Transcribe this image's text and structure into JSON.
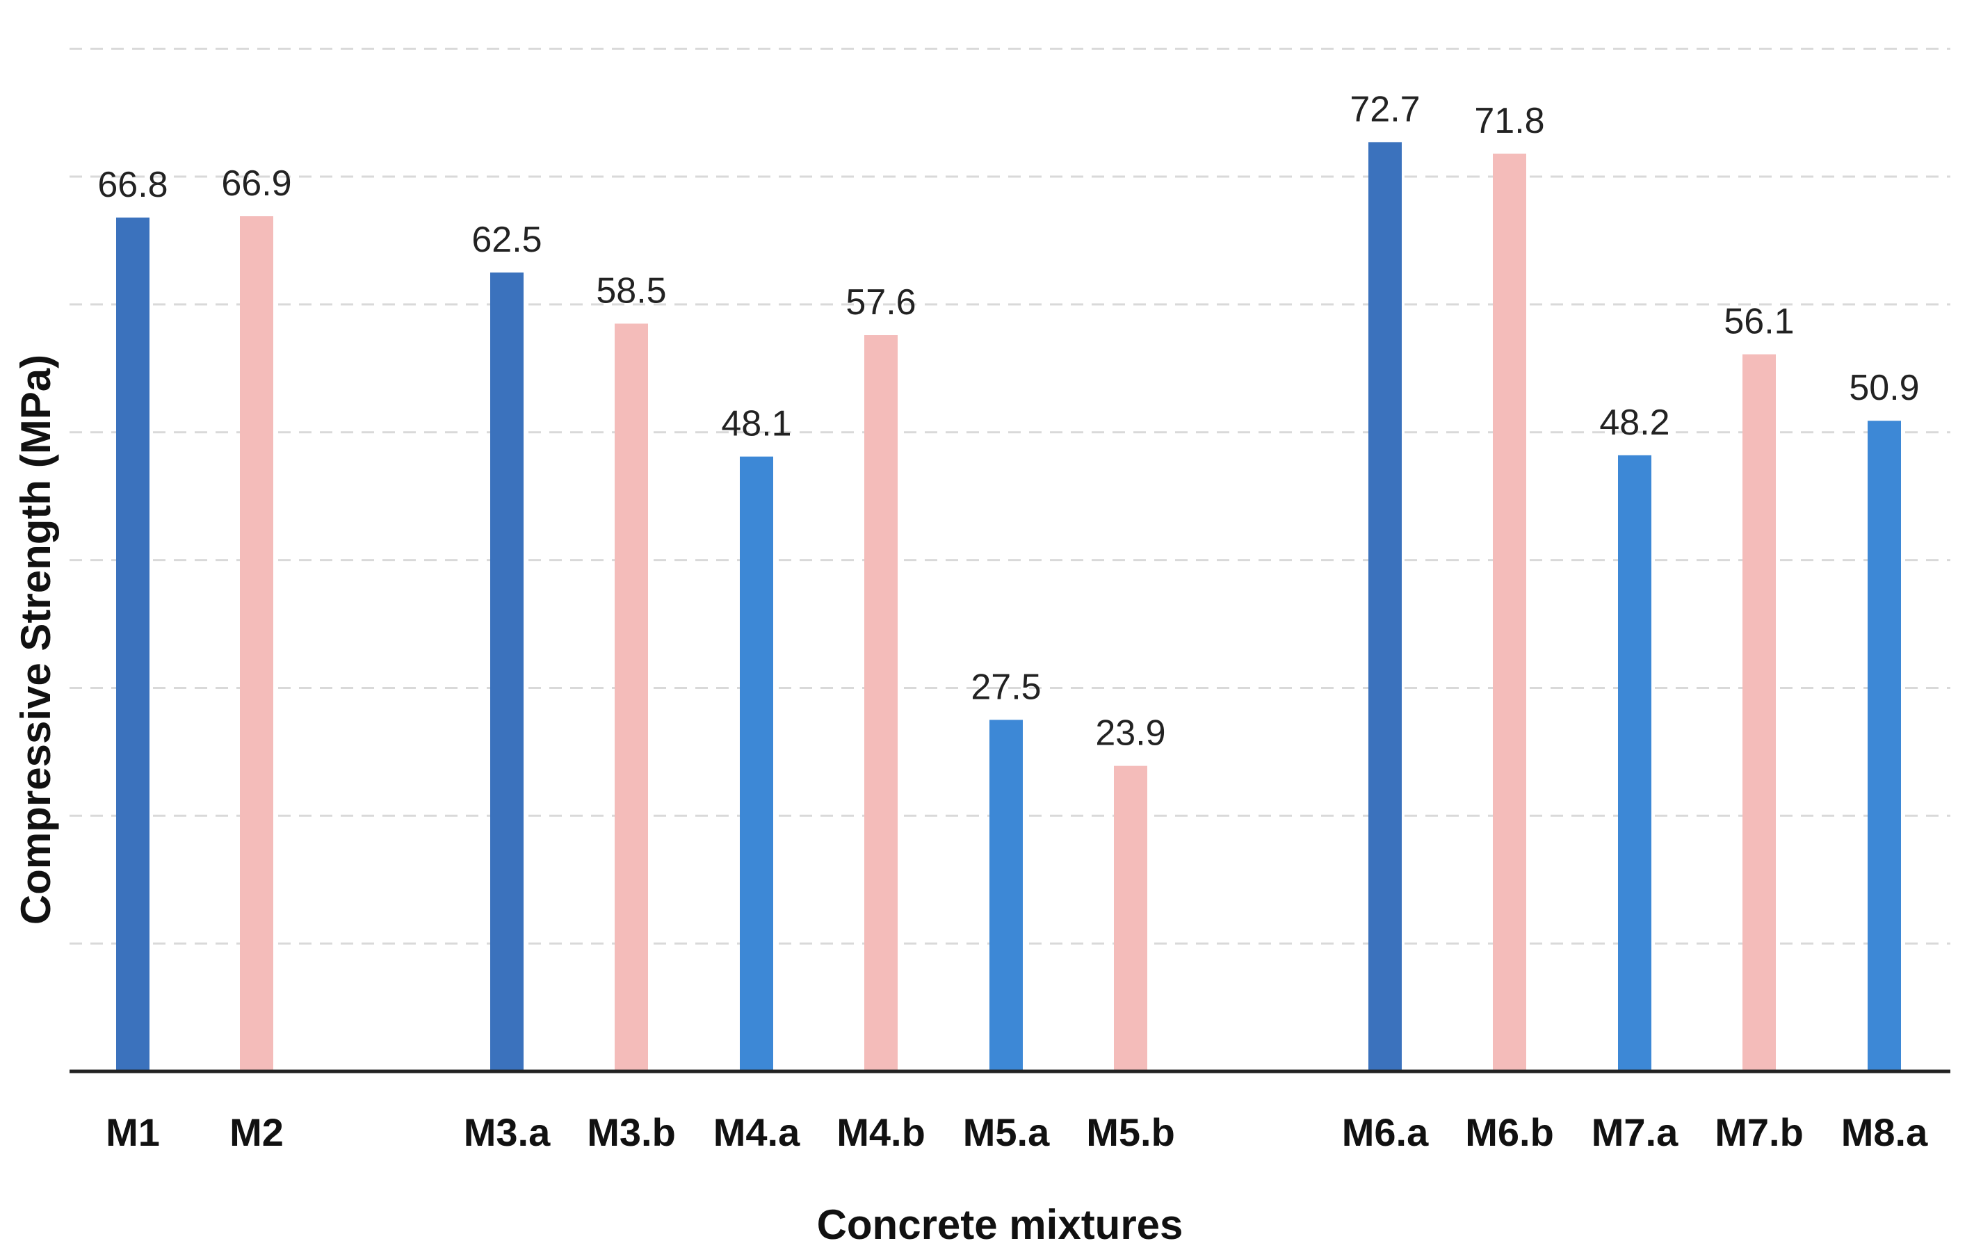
{
  "chart_data": {
    "type": "bar",
    "title": "",
    "xlabel": "Concrete mixtures",
    "ylabel": "Compressive Strength (MPa)",
    "ylim": [
      0,
      80
    ],
    "grid": true,
    "categories": [
      "M1",
      "M2",
      "M3.a",
      "M3.b",
      "M4.a",
      "M4.b",
      "M5.a",
      "M5.b",
      "M6.a",
      "M6.b",
      "M7.a",
      "M7.b",
      "M8.a"
    ],
    "values": [
      66.8,
      66.9,
      62.5,
      58.5,
      48.1,
      57.6,
      27.5,
      23.9,
      72.7,
      71.8,
      48.2,
      56.1,
      50.9
    ],
    "value_labels": [
      "66.8",
      "66.9",
      "62.5",
      "58.5",
      "48.1",
      "57.6",
      "27.5",
      "23.9",
      "72.7",
      "71.8",
      "48.2",
      "56.1",
      "50.9"
    ],
    "bar_colors": [
      "#3b72bd",
      "#f4bcba",
      "#3b72bd",
      "#f4bcba",
      "#3d88d6",
      "#f4bcba",
      "#3d88d6",
      "#f4bcba",
      "#3b72bd",
      "#f4bcba",
      "#3d88d6",
      "#f4bcba",
      "#3d88d6"
    ],
    "groups": [
      [
        "M1",
        "M2"
      ],
      [
        "M3.a",
        "M3.b",
        "M4.a",
        "M4.b",
        "M5.a",
        "M5.b"
      ],
      [
        "M6.a",
        "M6.b",
        "M7.a",
        "M7.b",
        "M8.a"
      ]
    ]
  },
  "colors": {
    "axis": "#222222",
    "grid": "#d9d9d9"
  }
}
